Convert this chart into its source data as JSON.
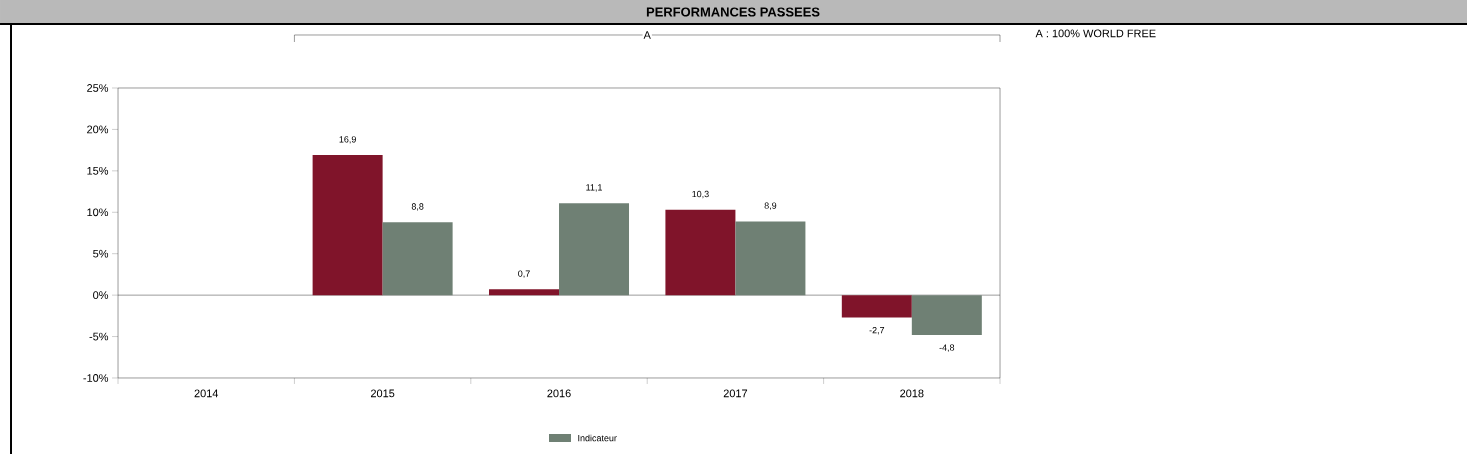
{
  "chart_data": {
    "type": "bar",
    "title": "PERFORMANCES PASSEES",
    "categories": [
      "2014",
      "2015",
      "2016",
      "2017",
      "2018"
    ],
    "series": [
      {
        "color": "#80142a",
        "values": [
          null,
          16.9,
          0.7,
          10.3,
          -2.7
        ],
        "value_labels": [
          null,
          "16,9",
          "0,7",
          "10,3",
          "-2,7"
        ]
      },
      {
        "name": "Indicateur",
        "color": "#6f8074",
        "values": [
          null,
          8.8,
          11.1,
          8.9,
          -4.8
        ],
        "value_labels": [
          null,
          "8,8",
          "11,1",
          "8,9",
          "-4,8"
        ]
      }
    ],
    "ylim": [
      -10,
      25
    ],
    "yticks": [
      {
        "value": -10,
        "label": "-10%"
      },
      {
        "value": -5,
        "label": "-5%"
      },
      {
        "value": 0,
        "label": "0%"
      },
      {
        "value": 5,
        "label": "5%"
      },
      {
        "value": 10,
        "label": "10%"
      },
      {
        "value": 15,
        "label": "15%"
      },
      {
        "value": 20,
        "label": "20%"
      },
      {
        "value": 25,
        "label": "25%"
      }
    ],
    "ref_lines": [
      {
        "axis": "y",
        "value": 0
      }
    ],
    "annotations": [
      "A",
      "A : 100% WORLD FREE"
    ],
    "legend": "bottom"
  }
}
